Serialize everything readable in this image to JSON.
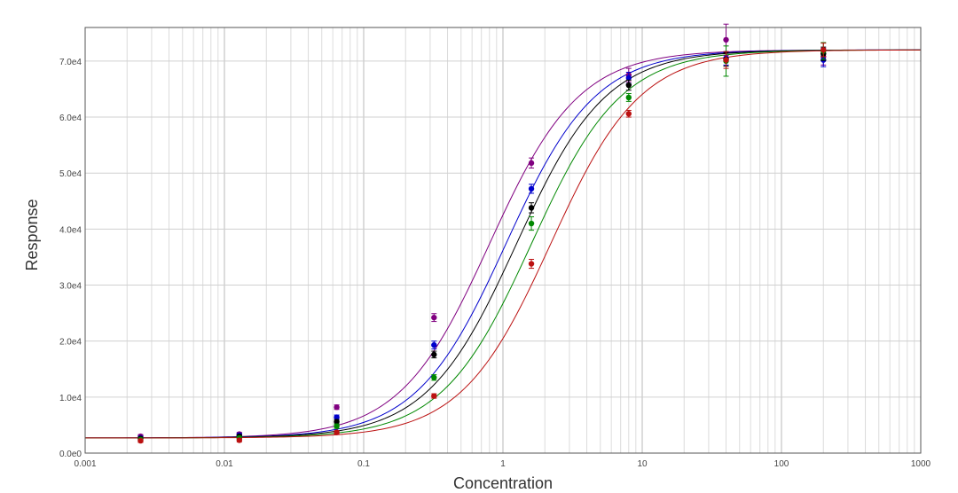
{
  "chart_data": {
    "type": "scatter",
    "title": "",
    "xlabel": "Concentration",
    "ylabel": "Response",
    "xscale": "log",
    "xlim": [
      0.001,
      1000
    ],
    "ylim": [
      0,
      76000
    ],
    "grid": true,
    "x_ticks": [
      {
        "value": 0.001,
        "label": "0.001"
      },
      {
        "value": 0.01,
        "label": "0.01"
      },
      {
        "value": 0.1,
        "label": "0.1"
      },
      {
        "value": 1,
        "label": "1"
      },
      {
        "value": 10,
        "label": "10"
      },
      {
        "value": 100,
        "label": "100"
      },
      {
        "value": 1000,
        "label": "1000"
      }
    ],
    "y_ticks": [
      {
        "value": 0,
        "label": "0.0e0"
      },
      {
        "value": 10000,
        "label": "1.0e4"
      },
      {
        "value": 20000,
        "label": "2.0e4"
      },
      {
        "value": 30000,
        "label": "3.0e4"
      },
      {
        "value": 40000,
        "label": "4.0e4"
      },
      {
        "value": 50000,
        "label": "5.0e4"
      },
      {
        "value": 60000,
        "label": "6.0e4"
      },
      {
        "value": 70000,
        "label": "7.0e4"
      }
    ],
    "x": [
      0.0025,
      0.0128,
      0.064,
      0.32,
      1.6,
      8,
      40,
      200
    ],
    "series": [
      {
        "color": "#800080",
        "ec50": 0.8,
        "hill": 1.35,
        "bottom": 2700,
        "top": 72000,
        "values": [
          3000,
          3400,
          8200,
          24200,
          51800,
          67500,
          73800,
          70800
        ],
        "errors": [
          300,
          300,
          400,
          700,
          900,
          1200,
          2800,
          1500
        ]
      },
      {
        "color": "#0000cc",
        "ec50": 1.05,
        "hill": 1.35,
        "bottom": 2700,
        "top": 72000,
        "values": [
          2700,
          3200,
          6400,
          19300,
          47200,
          67000,
          70500,
          70200
        ],
        "errors": [
          300,
          300,
          400,
          700,
          800,
          1000,
          1200,
          1200
        ]
      },
      {
        "color": "#000000",
        "ec50": 1.25,
        "hill": 1.35,
        "bottom": 2700,
        "top": 72000,
        "values": [
          2600,
          3000,
          5600,
          17600,
          43800,
          65700,
          70300,
          71300
        ],
        "errors": [
          300,
          300,
          400,
          600,
          900,
          900,
          1200,
          1200
        ]
      },
      {
        "color": "#008800",
        "ec50": 1.6,
        "hill": 1.35,
        "bottom": 2700,
        "top": 72000,
        "values": [
          2400,
          2700,
          4800,
          13500,
          41000,
          63500,
          70000,
          71800
        ],
        "errors": [
          300,
          300,
          400,
          500,
          1200,
          700,
          2700,
          1500
        ]
      },
      {
        "color": "#bb1111",
        "ec50": 2.2,
        "hill": 1.35,
        "bottom": 2700,
        "top": 72000,
        "values": [
          2200,
          2300,
          3700,
          10200,
          33800,
          60600,
          70200,
          72000
        ],
        "errors": [
          300,
          300,
          300,
          400,
          800,
          600,
          1500,
          1200
        ]
      }
    ]
  }
}
